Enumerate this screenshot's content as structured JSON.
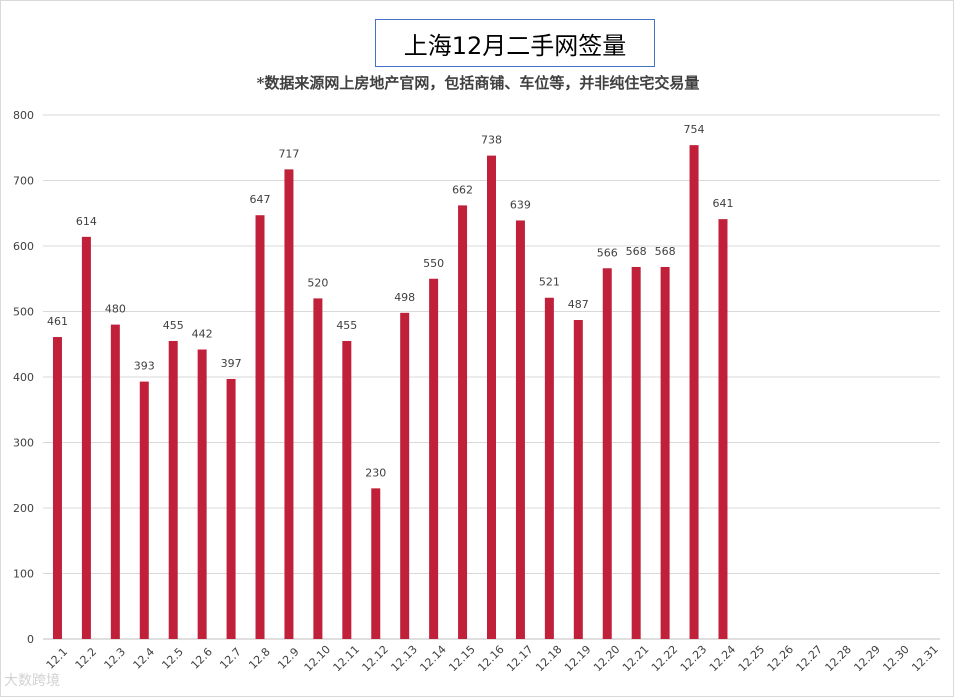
{
  "title": "上海12月二手网签量",
  "subtitle": "*数据来源网上房地产官网，包括商铺、车位等，并非纯住宅交易量",
  "watermark": "大数跨境",
  "colors": {
    "bar": "#c0203a",
    "grid": "#d9d9d9",
    "axis": "#bfbfbf"
  },
  "chart_data": {
    "type": "bar",
    "title": "上海12月二手网签量",
    "subtitle": "*数据来源网上房地产官网，包括商铺、车位等，并非纯住宅交易量",
    "xlabel": "",
    "ylabel": "",
    "ylim": [
      0,
      800
    ],
    "yticks": [
      0,
      100,
      200,
      300,
      400,
      500,
      600,
      700,
      800
    ],
    "grid": true,
    "categories": [
      "12.1",
      "12.2",
      "12.3",
      "12.4",
      "12.5",
      "12.6",
      "12.7",
      "12.8",
      "12.9",
      "12.10",
      "12.11",
      "12.12",
      "12.13",
      "12.14",
      "12.15",
      "12.16",
      "12.17",
      "12.18",
      "12.19",
      "12.20",
      "12.21",
      "12.22",
      "12.23",
      "12.24",
      "12.25",
      "12.26",
      "12.27",
      "12.28",
      "12.29",
      "12.30",
      "12.31"
    ],
    "values": [
      461,
      614,
      480,
      393,
      455,
      442,
      397,
      647,
      717,
      520,
      455,
      230,
      498,
      550,
      662,
      738,
      639,
      521,
      487,
      566,
      568,
      568,
      754,
      641,
      null,
      null,
      null,
      null,
      null,
      null,
      null
    ]
  }
}
